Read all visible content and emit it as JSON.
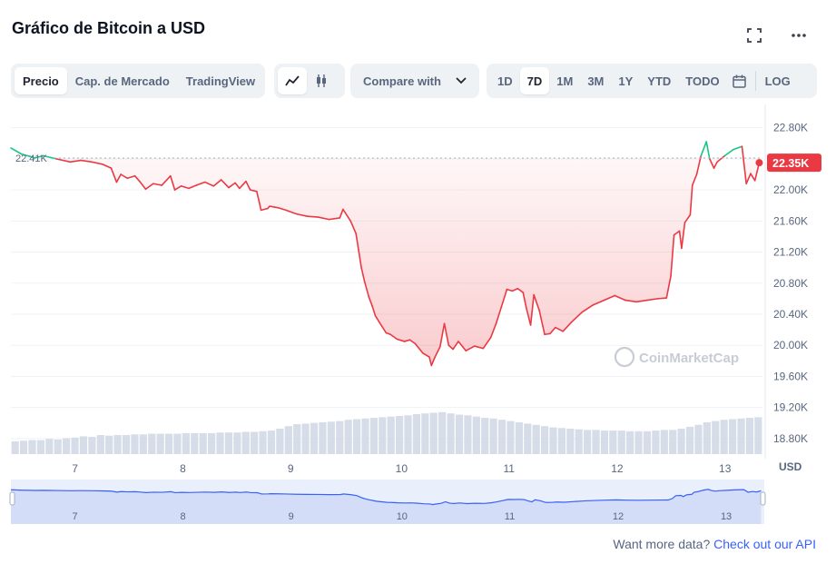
{
  "header": {
    "title": "Gráfico de Bitcoin a USD",
    "expand_icon": "fullscreen-icon",
    "more_icon": "more-horizontal-icon"
  },
  "toolbar": {
    "view_tabs": [
      {
        "label": "Precio",
        "active": true
      },
      {
        "label": "Cap. de Mercado",
        "active": false
      },
      {
        "label": "TradingView",
        "active": false
      }
    ],
    "chart_type_icons": [
      "line-chart-icon",
      "candlestick-icon"
    ],
    "compare_label": "Compare with",
    "ranges": [
      {
        "label": "1D",
        "active": false
      },
      {
        "label": "7D",
        "active": true
      },
      {
        "label": "1M",
        "active": false
      },
      {
        "label": "3M",
        "active": false
      },
      {
        "label": "1Y",
        "active": false
      },
      {
        "label": "YTD",
        "active": false
      },
      {
        "label": "TODO",
        "active": false
      }
    ],
    "calendar_icon": "calendar-icon",
    "log_label": "LOG"
  },
  "colors": {
    "up": "#16c784",
    "down": "#ea3943",
    "volume": "#cfd6e4",
    "navigator_line": "#3861fb",
    "navigator_fill": "#dfe7fb",
    "link": "#3861fb"
  },
  "chart_data": {
    "type": "line",
    "unit_label": "USD",
    "ylim": [
      18600,
      23100
    ],
    "y_ticks": [
      "22.80K",
      "22.40K",
      "22.00K",
      "21.60K",
      "21.20K",
      "20.80K",
      "20.40K",
      "20.00K",
      "19.60K",
      "19.20K",
      "18.80K"
    ],
    "y_tick_values": [
      22800,
      22400,
      22000,
      21600,
      21200,
      20800,
      20400,
      20000,
      19600,
      19200,
      18800
    ],
    "xlim": [
      6.4,
      13.37
    ],
    "x_ticks": [
      "7",
      "8",
      "9",
      "10",
      "11",
      "12",
      "13"
    ],
    "x_tick_values": [
      7,
      8,
      9,
      10,
      11,
      12,
      13
    ],
    "reference_label": "22.41K",
    "reference_value": 22410,
    "last_label": "22.35K",
    "last_value": 22350,
    "watermark": "CoinMarketCap",
    "grid": true,
    "series": [
      {
        "x": [
          6.4,
          6.5,
          6.58,
          6.62,
          6.7,
          6.82,
          6.95,
          7.05,
          7.15,
          7.25,
          7.33,
          7.38,
          7.42,
          7.48,
          7.55,
          7.6,
          7.65,
          7.72,
          7.8,
          7.88,
          7.92,
          7.98,
          8.05,
          8.12,
          8.2,
          8.28,
          8.35,
          8.42,
          8.48,
          8.52,
          8.58,
          8.62,
          8.68,
          8.72,
          8.78,
          8.8,
          8.88,
          8.95,
          9.05,
          9.15,
          9.25,
          9.35,
          9.45,
          9.48,
          9.55,
          9.6,
          9.65,
          9.68,
          9.72,
          9.75,
          9.78,
          9.82,
          9.88,
          9.92,
          9.98,
          10.05,
          10.1,
          10.15,
          10.22,
          10.28,
          10.3,
          10.33,
          10.38,
          10.42,
          10.46,
          10.5,
          10.55,
          10.62,
          10.7,
          10.78,
          10.85,
          10.9,
          10.95,
          11.0,
          11.05,
          11.1,
          11.15,
          11.18,
          11.22,
          11.25,
          11.3,
          11.35,
          11.4,
          11.45,
          11.52,
          11.6,
          11.7,
          11.8,
          11.9,
          12.0,
          12.1,
          12.2,
          12.3,
          12.4,
          12.48,
          12.52,
          12.55,
          12.6,
          12.62,
          12.65,
          12.7,
          12.72,
          12.76,
          12.8,
          12.85,
          12.88,
          12.92,
          12.95,
          13.02,
          13.1,
          13.18,
          13.22,
          13.26,
          13.3,
          13.34
        ],
        "y": [
          22540,
          22460,
          22430,
          22410,
          22440,
          22400,
          22360,
          22380,
          22360,
          22330,
          22280,
          22100,
          22200,
          22150,
          22180,
          22100,
          22010,
          22080,
          22060,
          22180,
          22000,
          22050,
          22020,
          22060,
          22100,
          22050,
          22130,
          22030,
          22090,
          22020,
          22110,
          22000,
          21980,
          21740,
          21760,
          21790,
          21770,
          21740,
          21690,
          21660,
          21650,
          21620,
          21640,
          21750,
          21600,
          21440,
          21000,
          20820,
          20620,
          20510,
          20380,
          20290,
          20160,
          20140,
          20080,
          20050,
          20070,
          20020,
          19900,
          19850,
          19740,
          19840,
          19980,
          20280,
          20000,
          19950,
          20050,
          19930,
          19990,
          19960,
          20100,
          20280,
          20500,
          20720,
          20700,
          20730,
          20680,
          20480,
          20260,
          20650,
          20450,
          20140,
          20150,
          20230,
          20180,
          20300,
          20430,
          20520,
          20580,
          20640,
          20580,
          20560,
          20580,
          20600,
          20610,
          20890,
          21420,
          21470,
          21250,
          21580,
          21680,
          22060,
          22200,
          22440,
          22620,
          22400,
          22280,
          22360,
          22440,
          22520,
          22560,
          22080,
          22210,
          22120,
          22350
        ]
      }
    ],
    "volume": [
      0.2,
      0.21,
      0.22,
      0.22,
      0.24,
      0.23,
      0.25,
      0.26,
      0.28,
      0.27,
      0.3,
      0.29,
      0.3,
      0.3,
      0.31,
      0.31,
      0.32,
      0.32,
      0.32,
      0.32,
      0.33,
      0.33,
      0.33,
      0.33,
      0.34,
      0.34,
      0.34,
      0.35,
      0.35,
      0.36,
      0.37,
      0.4,
      0.44,
      0.47,
      0.48,
      0.49,
      0.5,
      0.51,
      0.52,
      0.54,
      0.55,
      0.56,
      0.57,
      0.58,
      0.59,
      0.6,
      0.61,
      0.63,
      0.64,
      0.65,
      0.66,
      0.64,
      0.62,
      0.61,
      0.59,
      0.57,
      0.56,
      0.54,
      0.52,
      0.5,
      0.48,
      0.46,
      0.44,
      0.42,
      0.41,
      0.4,
      0.39,
      0.38,
      0.38,
      0.37,
      0.37,
      0.37,
      0.36,
      0.36,
      0.36,
      0.37,
      0.38,
      0.38,
      0.4,
      0.43,
      0.46,
      0.5,
      0.52,
      0.54,
      0.55,
      0.56,
      0.57,
      0.58
    ],
    "navigator": {
      "x_ticks": [
        "7",
        "8",
        "9",
        "10",
        "11",
        "12",
        "13"
      ]
    }
  },
  "footer": {
    "text": "Want more data?",
    "link": "Check out our API"
  }
}
